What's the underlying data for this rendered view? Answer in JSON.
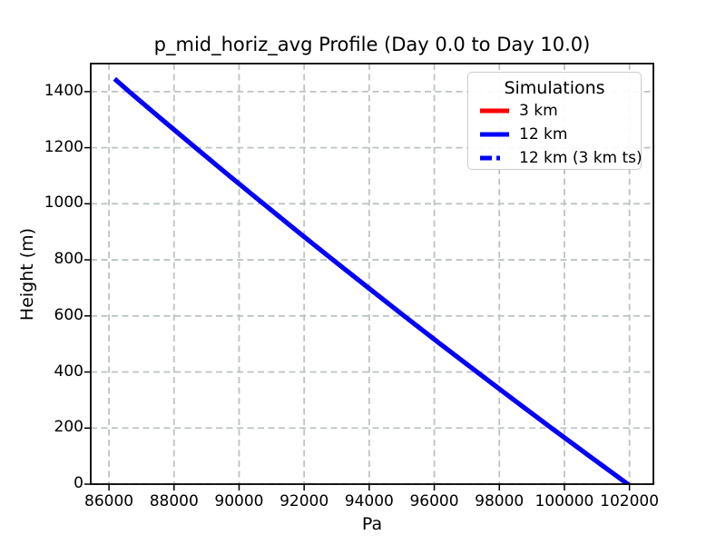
{
  "figure": {
    "background": "#ffffff",
    "spine_color": "#000000"
  },
  "chart_data": {
    "type": "line",
    "title": "p_mid_horiz_avg Profile (Day 0.0 to Day 10.0)",
    "xlabel": "Pa",
    "ylabel": "Height (m)",
    "xlim": [
      85440,
      102736
    ],
    "ylim": [
      0,
      1500
    ],
    "xticks": [
      86000,
      88000,
      90000,
      92000,
      94000,
      96000,
      98000,
      100000,
      102000
    ],
    "yticks": [
      0,
      200,
      400,
      600,
      800,
      1000,
      1200,
      1400
    ],
    "grid": true,
    "grid_color": "#bdc3c4",
    "grid_style": "dashed",
    "legend": {
      "title": "Simulations",
      "position": "upper right"
    },
    "series": [
      {
        "name": "3 km",
        "color": "#ff0000",
        "style": "solid",
        "linewidth": 5,
        "points": [
          [
            101950,
            0
          ],
          [
            100770,
            100
          ],
          [
            99604,
            200
          ],
          [
            98451,
            300
          ],
          [
            97312,
            400
          ],
          [
            96186,
            500
          ],
          [
            95073,
            600
          ],
          [
            93973,
            700
          ],
          [
            92885,
            800
          ],
          [
            91810,
            900
          ],
          [
            90748,
            1000
          ],
          [
            89698,
            1100
          ],
          [
            88660,
            1200
          ],
          [
            87633,
            1300
          ],
          [
            86619,
            1400
          ],
          [
            86226,
            1440
          ]
        ]
      },
      {
        "name": "12 km",
        "color": "#0000ff",
        "style": "solid",
        "linewidth": 5,
        "points": [
          [
            101950,
            0
          ],
          [
            100770,
            100
          ],
          [
            99604,
            200
          ],
          [
            98451,
            300
          ],
          [
            97312,
            400
          ],
          [
            96186,
            500
          ],
          [
            95073,
            600
          ],
          [
            93973,
            700
          ],
          [
            92885,
            800
          ],
          [
            91810,
            900
          ],
          [
            90748,
            1000
          ],
          [
            89698,
            1100
          ],
          [
            88660,
            1200
          ],
          [
            87633,
            1300
          ],
          [
            86619,
            1400
          ],
          [
            86226,
            1440
          ]
        ]
      },
      {
        "name": "12 km (3 km ts)",
        "color": "#0000ff",
        "style": "dashed",
        "linewidth": 5,
        "points": [
          [
            101950,
            0
          ],
          [
            100770,
            100
          ],
          [
            99604,
            200
          ],
          [
            98451,
            300
          ],
          [
            97312,
            400
          ],
          [
            96186,
            500
          ],
          [
            95073,
            600
          ],
          [
            93973,
            700
          ],
          [
            92885,
            800
          ],
          [
            91810,
            900
          ],
          [
            90748,
            1000
          ],
          [
            89698,
            1100
          ],
          [
            88660,
            1200
          ],
          [
            87633,
            1300
          ],
          [
            86619,
            1400
          ],
          [
            86226,
            1440
          ]
        ]
      }
    ]
  }
}
